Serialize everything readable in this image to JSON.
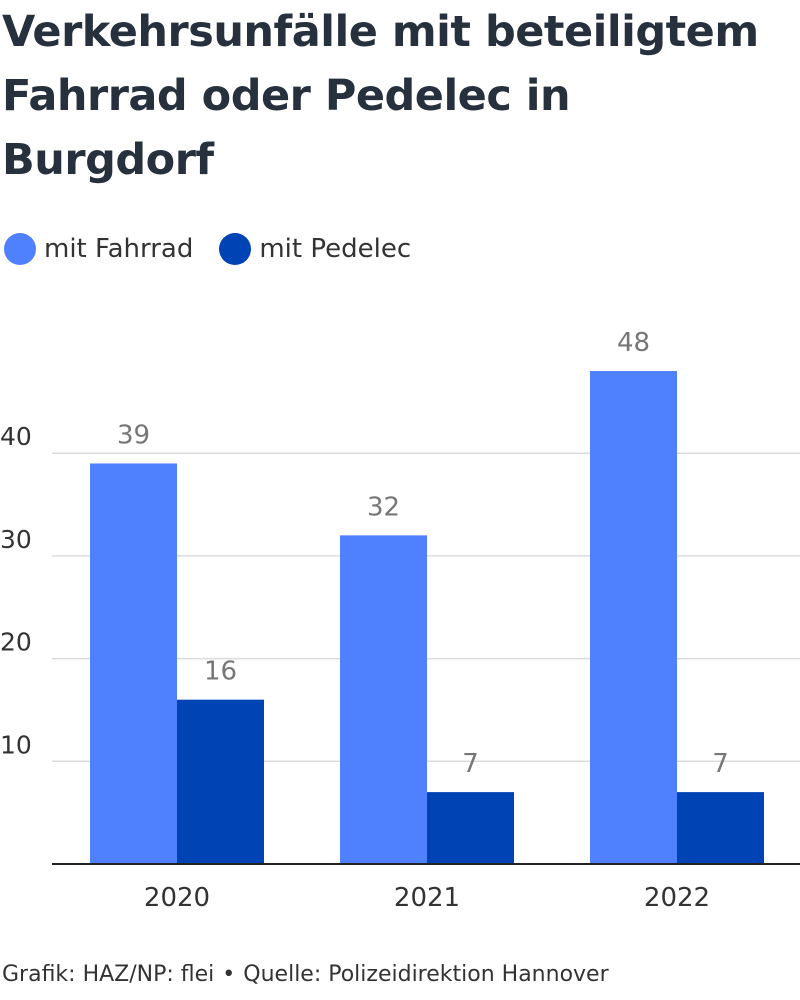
{
  "header": {
    "title": "Verkehrsunfälle mit beteiligtem Fahrrad oder Pedelec in Burgdorf"
  },
  "footer": {
    "credit": "Grafik: HAZ/NP: flei",
    "separator": "•",
    "source": "Quelle: Polizeidirektion Hannover"
  },
  "colors": {
    "fahrrad": "#4f81ff",
    "pedelec": "#0043b5",
    "grid": "#dcdcdc",
    "axis": "#222222",
    "tick_text": "#333333",
    "value_text": "#777777"
  },
  "chart_data": {
    "type": "bar",
    "title": "Verkehrsunfälle mit beteiligtem Fahrrad oder Pedelec in Burgdorf",
    "xlabel": "",
    "ylabel": "",
    "categories": [
      "2020",
      "2021",
      "2022"
    ],
    "series": [
      {
        "name": "mit Fahrrad",
        "values": [
          39,
          32,
          48
        ]
      },
      {
        "name": "mit Pedelec",
        "values": [
          16,
          7,
          7
        ]
      }
    ],
    "ylim": [
      0,
      48
    ],
    "yticks": [
      10,
      20,
      30,
      40
    ],
    "grid": true,
    "legend": "top-left",
    "data_labels": true
  }
}
